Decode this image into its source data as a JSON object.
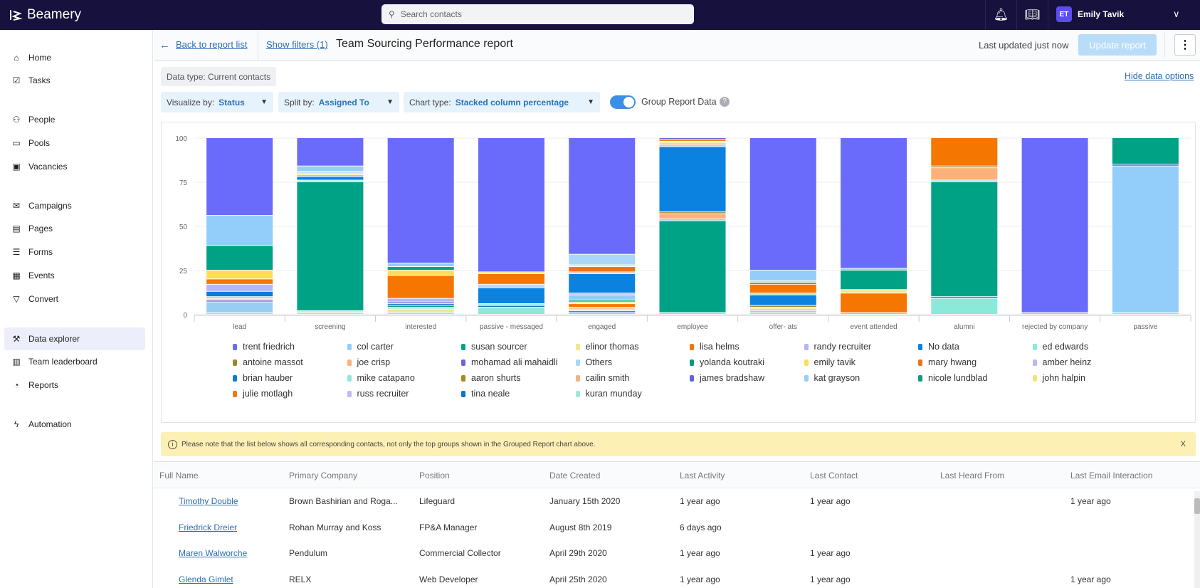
{
  "app": {
    "brand": "Beamery",
    "search_placeholder": "Search contacts",
    "user_initials": "ET",
    "user_name": "Emily Tavik"
  },
  "sidebar": {
    "items": [
      {
        "label": "Home",
        "icon": "home-icon",
        "glyph": "⌂"
      },
      {
        "label": "Tasks",
        "icon": "tasks-icon",
        "glyph": "☑"
      },
      {
        "label": "People",
        "icon": "people-icon",
        "glyph": "⚇"
      },
      {
        "label": "Pools",
        "icon": "folder-icon",
        "glyph": "▭"
      },
      {
        "label": "Vacancies",
        "icon": "briefcase-icon",
        "glyph": "▣"
      },
      {
        "label": "Campaigns",
        "icon": "mail-icon",
        "glyph": "✉"
      },
      {
        "label": "Pages",
        "icon": "page-icon",
        "glyph": "▤"
      },
      {
        "label": "Forms",
        "icon": "list-icon",
        "glyph": "☰"
      },
      {
        "label": "Events",
        "icon": "calendar-icon",
        "glyph": "▦"
      },
      {
        "label": "Convert",
        "icon": "funnel-icon",
        "glyph": "▽"
      },
      {
        "label": "Data explorer",
        "icon": "wand-icon",
        "glyph": "⚒",
        "active": true
      },
      {
        "label": "Team leaderboard",
        "icon": "bar-chart-icon",
        "glyph": "▥"
      },
      {
        "label": "Reports",
        "icon": "pie-icon",
        "glyph": "◔"
      },
      {
        "label": "Automation",
        "icon": "bolt-icon",
        "glyph": "ϟ"
      }
    ]
  },
  "header": {
    "back": "Back to report list",
    "filters": "Show filters (1)",
    "title": "Team Sourcing Performance report",
    "last_updated": "Last updated just now",
    "update": "Update report"
  },
  "options": {
    "data_type": "Data type: Current contacts",
    "hide": "Hide data options",
    "visualize_label": "Visualize by:",
    "visualize_value": "Status",
    "split_label": "Split by:",
    "split_value": "Assigned To",
    "chart_label": "Chart type:",
    "chart_value": "Stacked column percentage",
    "group_label": "Group Report Data",
    "group_on": true
  },
  "chart_data": {
    "type": "bar",
    "stacked": true,
    "percentage": true,
    "ylim": [
      0,
      100
    ],
    "yticks": [
      "0",
      "25",
      "50",
      "75",
      "100"
    ],
    "grid": true,
    "legend": "bottom",
    "categories": [
      "lead",
      "screening",
      "interested",
      "passive - messaged",
      "engaged",
      "employee",
      "offer- ats",
      "event attended",
      "alumni",
      "rejected by company",
      "passive"
    ],
    "series": [
      {
        "name": "trent friedrich",
        "color": "#6b6bfb"
      },
      {
        "name": "col carter",
        "color": "#93cdfa"
      },
      {
        "name": "susan sourcer",
        "color": "#00a286"
      },
      {
        "name": "elinor thomas",
        "color": "#f6e58a"
      },
      {
        "name": "lisa helms",
        "color": "#f57600"
      },
      {
        "name": "randy recruiter",
        "color": "#b4b4f6"
      },
      {
        "name": "No data",
        "color": "#0b82e0"
      },
      {
        "name": "ed edwards",
        "color": "#8be9da"
      },
      {
        "name": "antoine massot",
        "color": "#a3862a"
      },
      {
        "name": "joe crisp",
        "color": "#fbb27a"
      },
      {
        "name": "mohamad ali mahaidli",
        "color": "#6a66d8"
      },
      {
        "name": "Others",
        "color": "#aad6f7"
      },
      {
        "name": "yolanda koutraki",
        "color": "#0a9a80"
      },
      {
        "name": "emily tavik",
        "color": "#fddc5c"
      },
      {
        "name": "mary hwang",
        "color": "#e8741e"
      },
      {
        "name": "amber heinz",
        "color": "#b8b8f2"
      },
      {
        "name": "brian hauber",
        "color": "#0f7ad6"
      },
      {
        "name": "mike catapano",
        "color": "#93e6d9"
      },
      {
        "name": "aaron shurts",
        "color": "#a8891e"
      },
      {
        "name": "cailin smith",
        "color": "#f3b386"
      },
      {
        "name": "james bradshaw",
        "color": "#6262e2"
      },
      {
        "name": "kat grayson",
        "color": "#9acdf2"
      },
      {
        "name": "nicole lundblad",
        "color": "#129a7c"
      },
      {
        "name": "john halpin",
        "color": "#f8e07c"
      },
      {
        "name": "julie motlagh",
        "color": "#ea7a1e"
      },
      {
        "name": "russ recruiter",
        "color": "#bcbcf2"
      },
      {
        "name": "tina neale",
        "color": "#1272c4"
      },
      {
        "name": "kuran munday",
        "color": "#9be9dd"
      }
    ],
    "stacks": [
      [
        [
          "ed edwards",
          1
        ],
        [
          "kat grayson",
          6
        ],
        [
          "mohamad ali mahaidli",
          1
        ],
        [
          "john halpin",
          1
        ],
        [
          "cailin smith",
          1
        ],
        [
          "brian hauber",
          3
        ],
        [
          "randy recruiter",
          4
        ],
        [
          "lisa helms",
          3
        ],
        [
          "emily tavik",
          5
        ],
        [
          "susan sourcer",
          14
        ],
        [
          "col carter",
          17
        ],
        [
          "trent friedrich",
          44
        ]
      ],
      [
        [
          "kuran munday",
          1
        ],
        [
          "elinor thomas",
          1
        ],
        [
          "susan sourcer",
          73
        ],
        [
          "ed edwards",
          1
        ],
        [
          "No data",
          2
        ],
        [
          "col carter",
          1
        ],
        [
          "emily tavik",
          1
        ],
        [
          "Others",
          1
        ],
        [
          "kat grayson",
          3
        ],
        [
          "trent friedrich",
          16
        ]
      ],
      [
        [
          "ed edwards",
          1
        ],
        [
          "elinor thomas",
          2
        ],
        [
          "mike catapano",
          1
        ],
        [
          "yolanda koutraki",
          1
        ],
        [
          "tina neale",
          1
        ],
        [
          "mohamad ali mahaidli",
          1
        ],
        [
          "randy recruiter",
          2
        ],
        [
          "lisa helms",
          13
        ],
        [
          "emily tavik",
          3
        ],
        [
          "susan sourcer",
          2
        ],
        [
          "col carter",
          2
        ],
        [
          "trent friedrich",
          71
        ]
      ],
      [
        [
          "ed edwards",
          4
        ],
        [
          "tina neale",
          1
        ],
        [
          "mike catapano",
          1
        ],
        [
          "No data",
          9
        ],
        [
          "col carter",
          1
        ],
        [
          "randy recruiter",
          1
        ],
        [
          "lisa helms",
          6
        ],
        [
          "emily tavik",
          1
        ],
        [
          "trent friedrich",
          76
        ]
      ],
      [
        [
          "kat grayson",
          1
        ],
        [
          "mohamad ali mahaidli",
          1
        ],
        [
          "mike catapano",
          1
        ],
        [
          "joe crisp",
          1
        ],
        [
          "lisa helms",
          2
        ],
        [
          "elinor thomas",
          1
        ],
        [
          "susan sourcer",
          1
        ],
        [
          "col carter",
          3
        ],
        [
          "randy recruiter",
          1
        ],
        [
          "No data",
          11
        ],
        [
          "cailin smith",
          1
        ],
        [
          "mary hwang",
          3
        ],
        [
          "john halpin",
          1
        ],
        [
          "Others",
          6
        ],
        [
          "trent friedrich",
          66
        ]
      ],
      [
        [
          "ed edwards",
          1
        ],
        [
          "susan sourcer",
          52
        ],
        [
          "kat grayson",
          1
        ],
        [
          "joe crisp",
          3
        ],
        [
          "antoine massot",
          1
        ],
        [
          "No data",
          37
        ],
        [
          "Others",
          1
        ],
        [
          "cailin smith",
          1
        ],
        [
          "elinor thomas",
          1
        ],
        [
          "lisa helms",
          1
        ],
        [
          "mohamad ali mahaidli",
          1
        ]
      ],
      [
        [
          "ed edwards",
          1
        ],
        [
          "cailin smith",
          1
        ],
        [
          "randy recruiter",
          1
        ],
        [
          "elinor thomas",
          1
        ],
        [
          "aaron shurts",
          1
        ],
        [
          "No data",
          6
        ],
        [
          "mike catapano",
          1
        ],
        [
          "lisa helms",
          5
        ],
        [
          "yolanda koutraki",
          1
        ],
        [
          "emily tavik",
          1
        ],
        [
          "col carter",
          6
        ],
        [
          "trent friedrich",
          75
        ]
      ],
      [
        [
          "cailin smith",
          1
        ],
        [
          "lisa helms",
          11
        ],
        [
          "elinor thomas",
          2
        ],
        [
          "susan sourcer",
          11
        ],
        [
          "kat grayson",
          1
        ],
        [
          "trent friedrich",
          74
        ]
      ],
      [
        [
          "ed edwards",
          9
        ],
        [
          "No data",
          1
        ],
        [
          "susan sourcer",
          65
        ],
        [
          "kat grayson",
          1
        ],
        [
          "joe crisp",
          7
        ],
        [
          "antoine massot",
          1
        ],
        [
          "lisa helms",
          16
        ]
      ],
      [
        [
          "col carter",
          1
        ],
        [
          "trent friedrich",
          99
        ]
      ],
      [
        [
          "mike catapano",
          1
        ],
        [
          "col carter",
          83
        ],
        [
          "tina neale",
          1
        ],
        [
          "susan sourcer",
          15
        ]
      ]
    ]
  },
  "notice": {
    "text": "Please note that the list below shows all corresponding contacts, not only the top groups shown in the Grouped Report chart above.",
    "close": "X"
  },
  "table": {
    "columns": [
      "Full Name",
      "Primary Company",
      "Position",
      "Date Created",
      "Last Activity",
      "Last Contact",
      "Last Heard From",
      "Last Email Interaction"
    ],
    "rows": [
      [
        "Timothy Double",
        "Brown Bashirian and Roga...",
        "Lifeguard",
        "January 15th 2020",
        "1 year ago",
        "1 year ago",
        "",
        "1 year ago"
      ],
      [
        "Friedrick Dreier",
        "Rohan Murray and Koss",
        "FP&A Manager",
        "August 8th 2019",
        "6 days ago",
        "",
        "",
        ""
      ],
      [
        "Maren Walworche",
        "Pendulum",
        "Commercial Collector",
        "April 29th 2020",
        "1 year ago",
        "1 year ago",
        "",
        ""
      ],
      [
        "Glenda Gimlet",
        "RELX",
        "Web Developer",
        "April 25th 2020",
        "1 year ago",
        "1 year ago",
        "",
        "1 year ago"
      ]
    ]
  }
}
